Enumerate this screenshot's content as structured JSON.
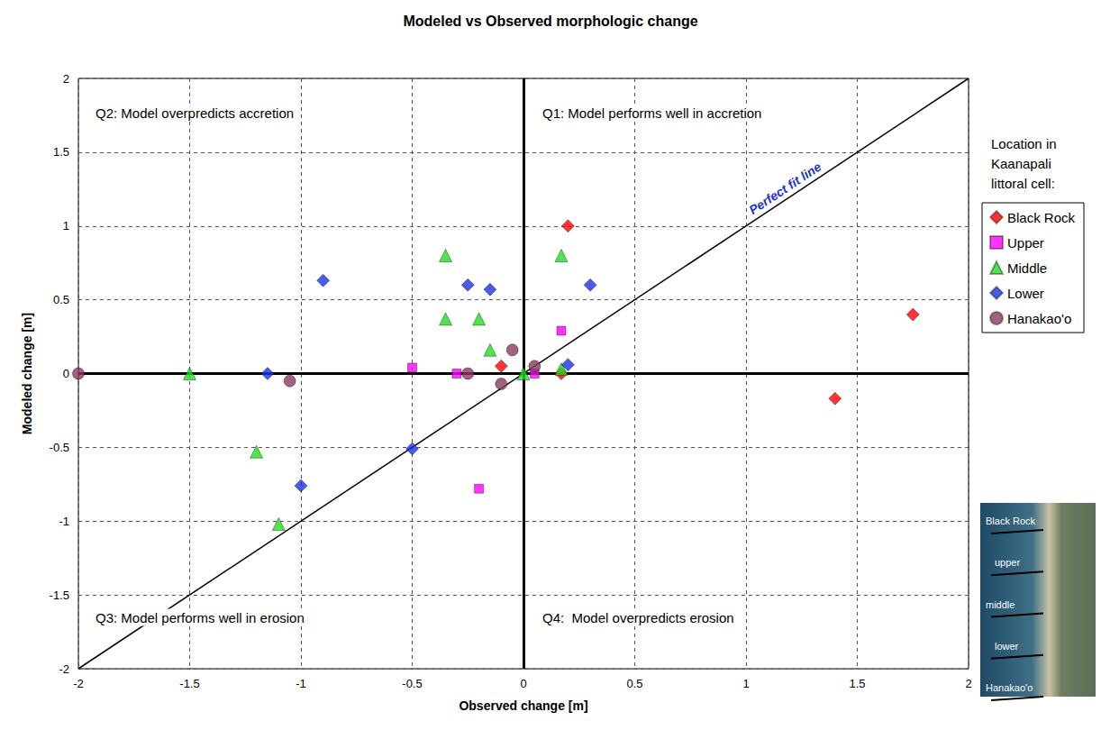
{
  "chart_data": {
    "type": "scatter",
    "title": "Modeled vs Observed morphologic change",
    "x_label": "Observed change [m]",
    "y_label": "Modeled change [m]",
    "xlim": [
      -2,
      2
    ],
    "ylim": [
      -2,
      2
    ],
    "xticks": [
      -2,
      -1.5,
      -1,
      -0.5,
      0,
      0.5,
      1,
      1.5,
      2
    ],
    "yticks": [
      -2,
      -1.5,
      -1,
      -0.5,
      0,
      0.5,
      1,
      1.5,
      2
    ],
    "grid": true,
    "legend": "right",
    "legend_title": "Location in Kaanapali littoral cell:",
    "series": [
      {
        "name": "Black Rock",
        "color": "#ff0000",
        "marker": "diamond",
        "x": [
          0.2,
          -0.1,
          0.17,
          1.75,
          1.4
        ],
        "values": [
          1.0,
          0.05,
          0.0,
          0.4,
          -0.17
        ]
      },
      {
        "name": "Upper",
        "color": "#ff00ff",
        "marker": "square",
        "x": [
          -0.5,
          -0.3,
          0.17,
          0.05,
          -0.2
        ],
        "values": [
          0.04,
          0.0,
          0.29,
          0.0,
          -0.78
        ]
      },
      {
        "name": "Middle",
        "color": "#22dd22",
        "marker": "triangle",
        "x": [
          -0.35,
          -0.35,
          -0.2,
          -0.15,
          0.17,
          0.17,
          0.0,
          -1.5,
          -1.2,
          -1.1
        ],
        "values": [
          0.8,
          0.37,
          0.37,
          0.16,
          0.8,
          0.03,
          0.0,
          0.0,
          -0.53,
          -1.02
        ]
      },
      {
        "name": "Lower",
        "color": "#1a33e6",
        "marker": "diamond",
        "x": [
          -0.9,
          -0.25,
          -0.15,
          0.3,
          0.2,
          -1.15,
          -0.5,
          -1.0
        ],
        "values": [
          0.63,
          0.6,
          0.57,
          0.6,
          0.06,
          0.0,
          -0.51,
          -0.76
        ]
      },
      {
        "name": "Hanakao'o",
        "color": "#8b3a62",
        "marker": "circle",
        "x": [
          -2,
          -1.05,
          -0.25,
          -0.1,
          -0.05,
          0.05
        ],
        "values": [
          0.0,
          -0.05,
          0.0,
          -0.07,
          0.16,
          0.05
        ]
      }
    ],
    "reference_line": {
      "label": "Perfect fit line",
      "x": [
        -2,
        2
      ],
      "y": [
        -2,
        2
      ]
    },
    "annotations": [
      "Q2: Model overpredicts accretion",
      "Q1: Model performs well in accretion",
      "Q3: Model performs well in erosion",
      "Q4:  Model overpredicts erosion"
    ],
    "inset_labels": [
      "Black Rock",
      "upper",
      "middle",
      "lower",
      "Hanakao'o"
    ]
  }
}
